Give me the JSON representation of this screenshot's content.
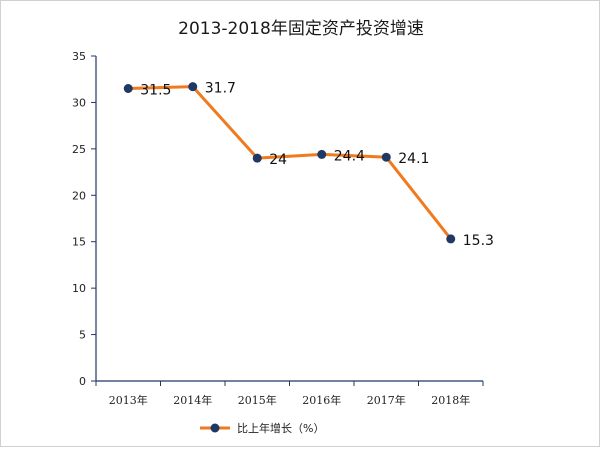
{
  "chart_data": {
    "type": "line",
    "title": "2013-2018年固定资产投资增速",
    "categories": [
      "2013年",
      "2014年",
      "2015年",
      "2016年",
      "2017年",
      "2018年"
    ],
    "series": [
      {
        "name": "比上年增长（%）",
        "values": [
          31.5,
          31.7,
          24,
          24.4,
          24.1,
          15.3
        ],
        "labels": [
          "31.5",
          "31.7",
          "24",
          "24.4",
          "24.1",
          "15.3"
        ]
      }
    ],
    "yticks": [
      "0",
      "5",
      "10",
      "15",
      "20",
      "25",
      "30",
      "35"
    ],
    "ylim": [
      0,
      35
    ],
    "grid": false,
    "legend": "bottom",
    "colors": {
      "line": "#F07A1E",
      "marker": "#1F3864",
      "axis": "#1F3864"
    }
  }
}
